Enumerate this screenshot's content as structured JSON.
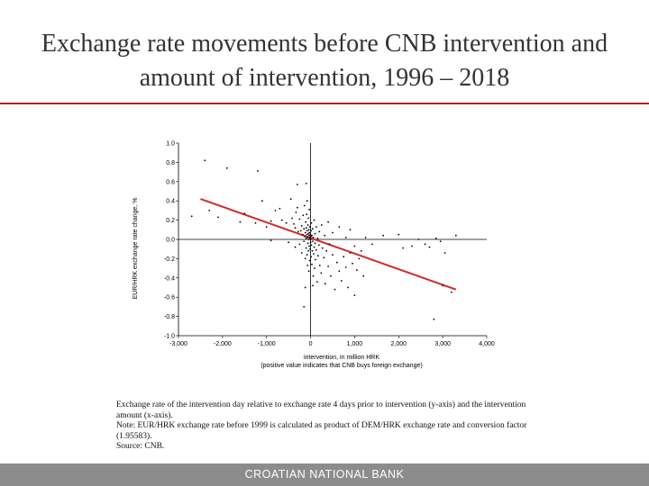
{
  "page": {
    "title_line1": "Exchange rate movements before CNB intervention and",
    "title_line2": "amount of intervention, 1996 – 2018",
    "caption_line1": "Exchange rate of the intervention day relative to exchange rate 4 days prior to intervention (y-axis) and the intervention",
    "caption_line2": "amount (x-axis).",
    "caption_line3": "Note: EUR/HRK exchange rate before 1999 is calculated as product of DEM/HRK exchange rate and conversion factor",
    "caption_line4": "(1.95583).",
    "caption_line5": "Source: CNB.",
    "footer": "CROATIAN NATIONAL BANK",
    "accent_color": "#b32222"
  },
  "chart_data": {
    "type": "scatter",
    "xlabel": "intervention, in million HRK",
    "xlabel_note": "(positive value indicates that CNB buys foreign exchange)",
    "ylabel": "EUR/HRK exchange rate change, %",
    "xlim": [
      -3000,
      4000
    ],
    "ylim": [
      -1.0,
      1.0
    ],
    "x_ticks": [
      -3000,
      -2000,
      -1000,
      0,
      1000,
      2000,
      3000,
      4000
    ],
    "x_tick_labels": [
      "-3,000",
      "-2,000",
      "-1,000",
      "0",
      "1,000",
      "2,000",
      "3,000",
      "4,000"
    ],
    "y_ticks": [
      1.0,
      0.8,
      0.6,
      0.4,
      0.2,
      0.0,
      -0.2,
      -0.4,
      -0.6,
      -0.8,
      -1.0
    ],
    "y_tick_labels": [
      "1.0",
      "0.8",
      "0.6",
      "0.4",
      "0.2",
      "0.0",
      "-0.2",
      "-0.4",
      "-0.6",
      "-0.8",
      "-1.0"
    ],
    "grid": false,
    "point_color": "#000000",
    "trend_color": "#d12a2a",
    "trendline": {
      "x": [
        -2500,
        3300
      ],
      "y": [
        0.42,
        -0.52
      ]
    },
    "points": [
      [
        -2400,
        0.82
      ],
      [
        -1900,
        0.74
      ],
      [
        -1200,
        0.71
      ],
      [
        -300,
        0.57
      ],
      [
        -100,
        0.58
      ],
      [
        -1100,
        0.4
      ],
      [
        -700,
        0.32
      ],
      [
        -2100,
        0.23
      ],
      [
        -2300,
        0.3
      ],
      [
        -1600,
        0.18
      ],
      [
        -1250,
        0.17
      ],
      [
        -1000,
        0.13
      ],
      [
        -900,
        0.19
      ],
      [
        -800,
        0.3
      ],
      [
        -650,
        0.2
      ],
      [
        -550,
        0.17
      ],
      [
        -450,
        0.42
      ],
      [
        -420,
        0.22
      ],
      [
        -380,
        0.16
      ],
      [
        -350,
        0.12
      ],
      [
        -330,
        0.28
      ],
      [
        -300,
        0.33
      ],
      [
        -280,
        0.08
      ],
      [
        -250,
        0.21
      ],
      [
        -220,
        0.09
      ],
      [
        -200,
        0.14
      ],
      [
        -180,
        0.05
      ],
      [
        -170,
        0.25
      ],
      [
        -150,
        0.11
      ],
      [
        -140,
        0.35
      ],
      [
        -130,
        0.03
      ],
      [
        -120,
        0.07
      ],
      [
        -110,
        0.18
      ],
      [
        -100,
        0.01
      ],
      [
        -95,
        0.12
      ],
      [
        -90,
        0.26
      ],
      [
        -85,
        0.05
      ],
      [
        -80,
        0.4
      ],
      [
        -75,
        0.09
      ],
      [
        -70,
        0.02
      ],
      [
        -60,
        0.15
      ],
      [
        -55,
        0.06
      ],
      [
        -50,
        0.22
      ],
      [
        -45,
        0.0
      ],
      [
        -40,
        0.1
      ],
      [
        -35,
        0.04
      ],
      [
        -30,
        0.31
      ],
      [
        -25,
        0.07
      ],
      [
        -20,
        0.02
      ],
      [
        -15,
        0.13
      ],
      [
        -10,
        0.01
      ],
      [
        -5,
        0.05
      ],
      [
        0,
        0.0
      ],
      [
        5,
        0.03
      ],
      [
        10,
        0.09
      ],
      [
        20,
        0.17
      ],
      [
        30,
        0.04
      ],
      [
        45,
        0.11
      ],
      [
        60,
        0.02
      ],
      [
        80,
        0.2
      ],
      [
        100,
        0.06
      ],
      [
        130,
        0.13
      ],
      [
        160,
        0.01
      ],
      [
        200,
        0.08
      ],
      [
        250,
        0.15
      ],
      [
        320,
        0.04
      ],
      [
        400,
        0.18
      ],
      [
        500,
        0.07
      ],
      [
        650,
        0.13
      ],
      [
        800,
        0.02
      ],
      [
        900,
        0.1
      ],
      [
        -500,
        -0.03
      ],
      [
        -350,
        -0.08
      ],
      [
        -250,
        -0.05
      ],
      [
        -200,
        -0.14
      ],
      [
        -150,
        -0.02
      ],
      [
        -120,
        -0.2
      ],
      [
        -100,
        -0.09
      ],
      [
        -80,
        -0.16
      ],
      [
        -70,
        -0.27
      ],
      [
        -60,
        -0.04
      ],
      [
        -50,
        -0.12
      ],
      [
        -40,
        -0.33
      ],
      [
        -30,
        -0.07
      ],
      [
        -20,
        -0.22
      ],
      [
        -10,
        -0.1
      ],
      [
        0,
        -0.03
      ],
      [
        10,
        -0.18
      ],
      [
        20,
        -0.06
      ],
      [
        30,
        -0.26
      ],
      [
        40,
        -0.12
      ],
      [
        50,
        -0.02
      ],
      [
        60,
        -0.38
      ],
      [
        70,
        -0.15
      ],
      [
        80,
        -0.08
      ],
      [
        90,
        -0.3
      ],
      [
        100,
        -0.04
      ],
      [
        110,
        -0.21
      ],
      [
        130,
        -0.11
      ],
      [
        150,
        -0.44
      ],
      [
        170,
        -0.17
      ],
      [
        190,
        -0.06
      ],
      [
        210,
        -0.27
      ],
      [
        240,
        -0.35
      ],
      [
        270,
        -0.09
      ],
      [
        300,
        -0.19
      ],
      [
        330,
        -0.46
      ],
      [
        360,
        -0.12
      ],
      [
        400,
        -0.28
      ],
      [
        430,
        -0.05
      ],
      [
        460,
        -0.38
      ],
      [
        500,
        -0.16
      ],
      [
        550,
        -0.52
      ],
      [
        600,
        -0.24
      ],
      [
        650,
        -0.33
      ],
      [
        700,
        -0.43
      ],
      [
        750,
        -0.18
      ],
      [
        800,
        -0.29
      ],
      [
        850,
        -0.5
      ],
      [
        900,
        -0.14
      ],
      [
        950,
        -0.25
      ],
      [
        1000,
        -0.07
      ],
      [
        1050,
        -0.32
      ],
      [
        1100,
        -0.2
      ],
      [
        1150,
        -0.12
      ],
      [
        1200,
        -0.38
      ],
      [
        1000,
        -0.58
      ],
      [
        -120,
        -0.5
      ],
      [
        50,
        -0.48
      ],
      [
        20,
        0.04
      ],
      [
        1250,
        0.02
      ],
      [
        1400,
        -0.05
      ],
      [
        1650,
        0.04
      ],
      [
        2000,
        0.05
      ],
      [
        2100,
        -0.09
      ],
      [
        2300,
        -0.07
      ],
      [
        2600,
        -0.05
      ],
      [
        2950,
        -0.02
      ],
      [
        2850,
        0.01
      ],
      [
        3300,
        0.04
      ],
      [
        2450,
        0.0
      ],
      [
        2700,
        -0.08
      ],
      [
        3050,
        -0.14
      ],
      [
        3000,
        -0.48
      ],
      [
        3200,
        -0.55
      ],
      [
        2800,
        -0.83
      ],
      [
        -900,
        -0.01
      ],
      [
        -1500,
        0.27
      ],
      [
        -2700,
        0.24
      ],
      [
        -150,
        -0.7
      ]
    ]
  }
}
